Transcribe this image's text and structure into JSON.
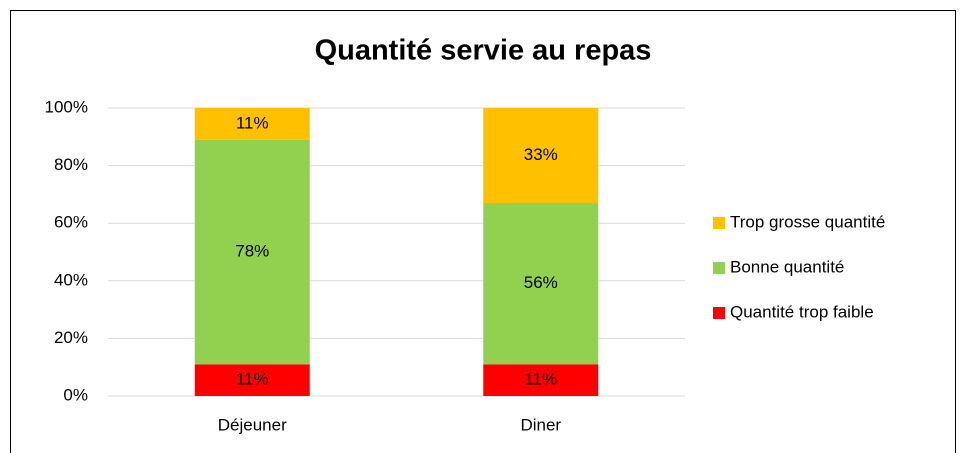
{
  "chart_data": {
    "type": "stacked_bar",
    "title": "Quantité servie au repas",
    "categories": [
      "Déjeuner",
      "Diner"
    ],
    "series": [
      {
        "name": "Quantité trop faible",
        "color": "#ff0000",
        "values": [
          11,
          11
        ],
        "value_labels": [
          "11%",
          "11%"
        ]
      },
      {
        "name": "Bonne quantité",
        "color": "#92d050",
        "values": [
          78,
          56
        ],
        "value_labels": [
          "78%",
          "56%"
        ]
      },
      {
        "name": "Trop grosse quantité",
        "color": "#ffc000",
        "values": [
          11,
          33
        ],
        "value_labels": [
          "11%",
          "33%"
        ]
      }
    ],
    "ylim": [
      0,
      100
    ],
    "yticks": [
      {
        "value": 0,
        "label": "0%"
      },
      {
        "value": 20,
        "label": "20%"
      },
      {
        "value": 40,
        "label": "40%"
      },
      {
        "value": 60,
        "label": "60%"
      },
      {
        "value": 80,
        "label": "80%"
      },
      {
        "value": 100,
        "label": "100%"
      }
    ],
    "grid": true,
    "legend": "right"
  }
}
